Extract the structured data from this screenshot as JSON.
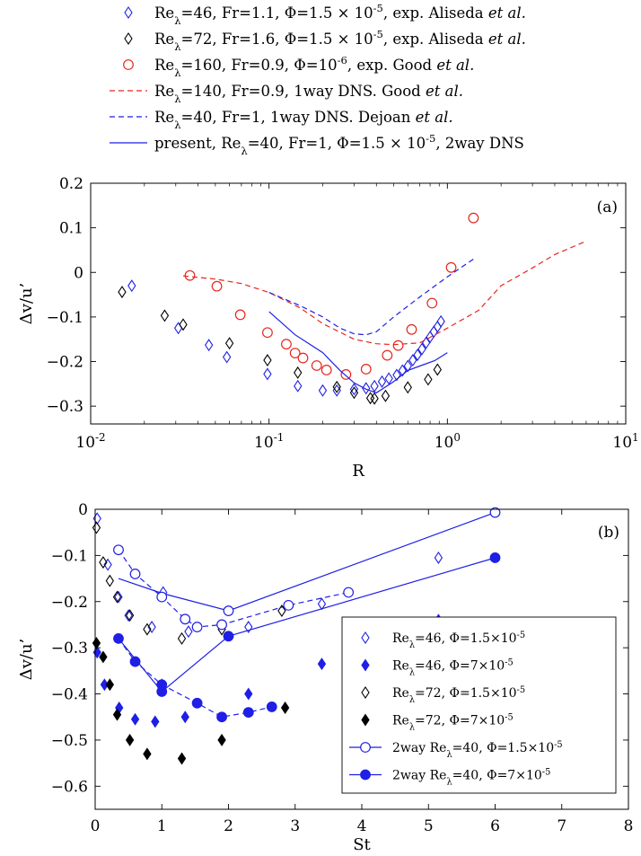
{
  "colors": {
    "blue": "#1f1fe6",
    "red": "#e6261f",
    "black": "#000000"
  },
  "chart_data": [
    {
      "type": "scatter",
      "panel_label": "(a)",
      "xlabel": "R",
      "ylabel": "Δv/u’",
      "xscale": "log",
      "xlim": [
        0.01,
        10
      ],
      "ylim": [
        -0.34,
        0.2
      ],
      "xticks": [
        0.01,
        0.1,
        1,
        10
      ],
      "xtick_labels": [
        [
          "10",
          "-2"
        ],
        [
          "10",
          "-1"
        ],
        [
          "10",
          "0"
        ],
        [
          "10",
          "1"
        ]
      ],
      "yticks": [
        -0.3,
        -0.2,
        -0.1,
        0,
        0.1,
        0.2
      ],
      "ytick_labels": [
        "−0.3",
        "−0.2",
        "−0.1",
        "0",
        "0.1",
        "0.2"
      ],
      "legend_position": "top, outside",
      "series": [
        {
          "name": "Reλ=46, Fr=1.1, Φ=1.5 × 10-5, exp. Aliseda et al.",
          "legend_parts": [
            "Re",
            "λ",
            "=46, Fr=1.1, Φ=1.5 × 10",
            "-5",
            ", exp. Aliseda ",
            "et al."
          ],
          "marker": "diamond-open",
          "color": "blue",
          "x": [
            0.017,
            0.031,
            0.046,
            0.058,
            0.098,
            0.145,
            0.2,
            0.24,
            0.3,
            0.35,
            0.39,
            0.43,
            0.47,
            0.52,
            0.56,
            0.6,
            0.64,
            0.68,
            0.72,
            0.76,
            0.8,
            0.84,
            0.88,
            0.92
          ],
          "y": [
            -0.03,
            -0.125,
            -0.163,
            -0.19,
            -0.228,
            -0.255,
            -0.265,
            -0.265,
            -0.262,
            -0.26,
            -0.255,
            -0.245,
            -0.238,
            -0.23,
            -0.22,
            -0.21,
            -0.197,
            -0.185,
            -0.172,
            -0.158,
            -0.145,
            -0.133,
            -0.122,
            -0.11
          ]
        },
        {
          "name": "Reλ=72, Fr=1.6, Φ=1.5 × 10-5, exp. Aliseda et al.",
          "legend_parts": [
            "Re",
            "λ",
            "=72, Fr=1.6, Φ=1.5 × 10",
            "-5",
            ", exp. Aliseda ",
            "et al."
          ],
          "marker": "diamond-open",
          "color": "black",
          "x": [
            0.015,
            0.026,
            0.033,
            0.06,
            0.098,
            0.145,
            0.24,
            0.3,
            0.37,
            0.39,
            0.45,
            0.6,
            0.78,
            0.88
          ],
          "y": [
            -0.044,
            -0.097,
            -0.117,
            -0.159,
            -0.197,
            -0.225,
            -0.257,
            -0.27,
            -0.282,
            -0.283,
            -0.277,
            -0.258,
            -0.24,
            -0.218
          ]
        },
        {
          "name": "Reλ=160, Fr=0.9, Φ=10-6, exp. Good et al.",
          "legend_parts": [
            "Re",
            "λ",
            "=160, Fr=0.9, Φ=10",
            "-6",
            ", exp. Good ",
            "et al."
          ],
          "marker": "circle-open",
          "color": "red",
          "x": [
            0.036,
            0.051,
            0.069,
            0.098,
            0.125,
            0.14,
            0.155,
            0.185,
            0.21,
            0.27,
            0.35,
            0.46,
            0.53,
            0.63,
            0.82,
            1.05,
            1.4
          ],
          "y": [
            -0.007,
            -0.031,
            -0.095,
            -0.135,
            -0.161,
            -0.181,
            -0.192,
            -0.209,
            -0.219,
            -0.229,
            -0.217,
            -0.186,
            -0.164,
            -0.128,
            -0.069,
            0.011,
            0.122
          ]
        },
        {
          "name": "Reλ=140, Fr=0.9, 1way DNS. Good et al.",
          "legend_parts": [
            "Re",
            "λ",
            "=140, Fr=0.9, 1way DNS. Good ",
            "",
            "",
            "et al."
          ],
          "marker": "dashed-line",
          "color": "red",
          "x": [
            0.033,
            0.05,
            0.07,
            0.1,
            0.15,
            0.2,
            0.3,
            0.4,
            0.5,
            0.7,
            1.0,
            1.5,
            2.0,
            3.0,
            4.0,
            6.0
          ],
          "y": [
            -0.008,
            -0.015,
            -0.025,
            -0.045,
            -0.08,
            -0.115,
            -0.15,
            -0.16,
            -0.162,
            -0.158,
            -0.125,
            -0.085,
            -0.03,
            0.01,
            0.04,
            0.07
          ]
        },
        {
          "name": "Reλ=40, Fr=1, 1way DNS. Dejoan et al.",
          "legend_parts": [
            "Re",
            "λ",
            "=40, Fr=1, 1way DNS. Dejoan ",
            "",
            "",
            "et al."
          ],
          "marker": "dashed-line",
          "color": "blue",
          "x": [
            0.1,
            0.15,
            0.2,
            0.25,
            0.3,
            0.35,
            0.4,
            0.5,
            0.7,
            1.0,
            1.4
          ],
          "y": [
            -0.045,
            -0.075,
            -0.1,
            -0.125,
            -0.138,
            -0.14,
            -0.133,
            -0.1,
            -0.055,
            -0.01,
            0.03
          ]
        },
        {
          "name": "present, Reλ=40, Fr=1, Φ=1.5 × 10-5, 2way DNS",
          "legend_parts": [
            "present, Re",
            "λ",
            "=40, Fr=1, Φ=1.5 × 10",
            "-5",
            ", 2way DNS",
            ""
          ],
          "marker": "solid-line",
          "color": "blue",
          "x": [
            0.1,
            0.14,
            0.2,
            0.25,
            0.3,
            0.35,
            0.4,
            0.5,
            0.6,
            0.7,
            0.85,
            1.0
          ],
          "y": [
            -0.088,
            -0.14,
            -0.18,
            -0.22,
            -0.248,
            -0.262,
            -0.27,
            -0.245,
            -0.22,
            -0.21,
            -0.198,
            -0.18
          ]
        }
      ]
    },
    {
      "type": "scatter",
      "panel_label": "(b)",
      "xlabel": "St",
      "ylabel": "Δv/u’",
      "xlim": [
        0,
        8
      ],
      "ylim": [
        -0.65,
        0
      ],
      "xticks": [
        0,
        1,
        2,
        3,
        4,
        5,
        6,
        7,
        8
      ],
      "xtick_labels": [
        "0",
        "1",
        "2",
        "3",
        "4",
        "5",
        "6",
        "7",
        "8"
      ],
      "yticks": [
        -0.6,
        -0.5,
        -0.4,
        -0.3,
        -0.2,
        -0.1,
        0
      ],
      "ytick_labels": [
        "−0.6",
        "−0.5",
        "−0.4",
        "−0.3",
        "−0.2",
        "−0.1",
        "0"
      ],
      "legend_position": "bottom-right",
      "series": [
        {
          "name": "Reλ=46, Φ=1.5×10-5",
          "legend_parts": [
            "Re",
            "λ",
            "=46, Φ=1.5×10",
            "-5"
          ],
          "marker": "diamond-open",
          "color": "blue",
          "x": [
            0.03,
            0.19,
            0.35,
            0.5,
            0.85,
            1.02,
            1.4,
            2.3,
            3.4,
            5.15
          ],
          "y": [
            -0.02,
            -0.12,
            -0.19,
            -0.23,
            -0.255,
            -0.18,
            -0.265,
            -0.255,
            -0.205,
            -0.105
          ]
        },
        {
          "name": "Reλ=46, Φ=7×10-5",
          "legend_parts": [
            "Re",
            "λ",
            "=46, Φ=7×10",
            "-5"
          ],
          "marker": "diamond-filled",
          "color": "blue",
          "x": [
            0.03,
            0.14,
            0.36,
            0.6,
            0.9,
            1.0,
            1.35,
            2.3,
            3.4,
            5.15
          ],
          "y": [
            -0.31,
            -0.38,
            -0.43,
            -0.455,
            -0.46,
            -0.38,
            -0.45,
            -0.4,
            -0.335,
            -0.24
          ]
        },
        {
          "name": "Reλ=72, Φ=1.5×10-5",
          "legend_parts": [
            "Re",
            "λ",
            "=72, Φ=1.5×10",
            "-5"
          ],
          "marker": "diamond-open",
          "color": "black",
          "x": [
            0.02,
            0.12,
            0.22,
            0.33,
            0.52,
            0.78,
            1.3,
            1.9,
            2.8
          ],
          "y": [
            -0.04,
            -0.115,
            -0.155,
            -0.19,
            -0.23,
            -0.26,
            -0.28,
            -0.26,
            -0.22
          ]
        },
        {
          "name": "Reλ=72, Φ=7×10-5",
          "legend_parts": [
            "Re",
            "λ",
            "=72, Φ=7×10",
            "-5"
          ],
          "marker": "diamond-filled",
          "color": "black",
          "x": [
            0.02,
            0.12,
            0.22,
            0.33,
            0.52,
            0.78,
            1.3,
            1.9,
            2.85
          ],
          "y": [
            -0.29,
            -0.32,
            -0.38,
            -0.445,
            -0.5,
            -0.53,
            -0.54,
            -0.5,
            -0.43
          ]
        },
        {
          "name": "2way Reλ=40, Φ=1.5×10-5",
          "legend_parts": [
            "2way Re",
            "λ",
            "=40, Φ=1.5×10",
            "-5"
          ],
          "marker": "circle-open-line",
          "color": "blue",
          "x": [
            0.35,
            0.6,
            1.0,
            1.35,
            1.53,
            1.9,
            2.0,
            2.9,
            3.8,
            6.0
          ],
          "y": [
            -0.088,
            -0.14,
            -0.19,
            -0.238,
            -0.255,
            -0.25,
            -0.22,
            -0.208,
            -0.18,
            -0.007
          ],
          "segments": [
            [
              [
                0.35,
                -0.15
              ],
              [
                1.0,
                -0.182
              ],
              [
                2.0,
                -0.22
              ],
              [
                6.0,
                -0.007
              ]
            ],
            [
              [
                0.35,
                -0.088
              ],
              [
                0.6,
                -0.14
              ],
              [
                1.0,
                -0.19
              ],
              [
                1.35,
                -0.238
              ],
              [
                1.53,
                -0.255
              ],
              [
                1.9,
                -0.25
              ],
              [
                2.9,
                -0.208
              ],
              [
                3.8,
                -0.18
              ]
            ]
          ],
          "segment_styles": [
            "solid",
            "dashed"
          ]
        },
        {
          "name": "2way Reλ=40, Φ=7×10-5",
          "legend_parts": [
            "2way Re",
            "λ",
            "=40, Φ=7×10",
            "-5"
          ],
          "marker": "circle-filled-line",
          "color": "blue",
          "x": [
            0.35,
            0.6,
            1.0,
            1.0,
            1.53,
            1.9,
            2.0,
            2.3,
            2.65,
            6.0
          ],
          "y": [
            -0.28,
            -0.33,
            -0.38,
            -0.395,
            -0.42,
            -0.45,
            -0.275,
            -0.44,
            -0.428,
            -0.105
          ],
          "segments": [
            [
              [
                0.35,
                -0.28
              ],
              [
                1.0,
                -0.395
              ],
              [
                2.0,
                -0.275
              ],
              [
                6.0,
                -0.105
              ]
            ],
            [
              [
                0.35,
                -0.28
              ],
              [
                0.6,
                -0.33
              ],
              [
                1.0,
                -0.38
              ],
              [
                1.53,
                -0.42
              ],
              [
                1.9,
                -0.45
              ],
              [
                2.3,
                -0.44
              ],
              [
                2.65,
                -0.428
              ]
            ]
          ],
          "segment_styles": [
            "solid",
            "dashed"
          ]
        }
      ]
    }
  ]
}
